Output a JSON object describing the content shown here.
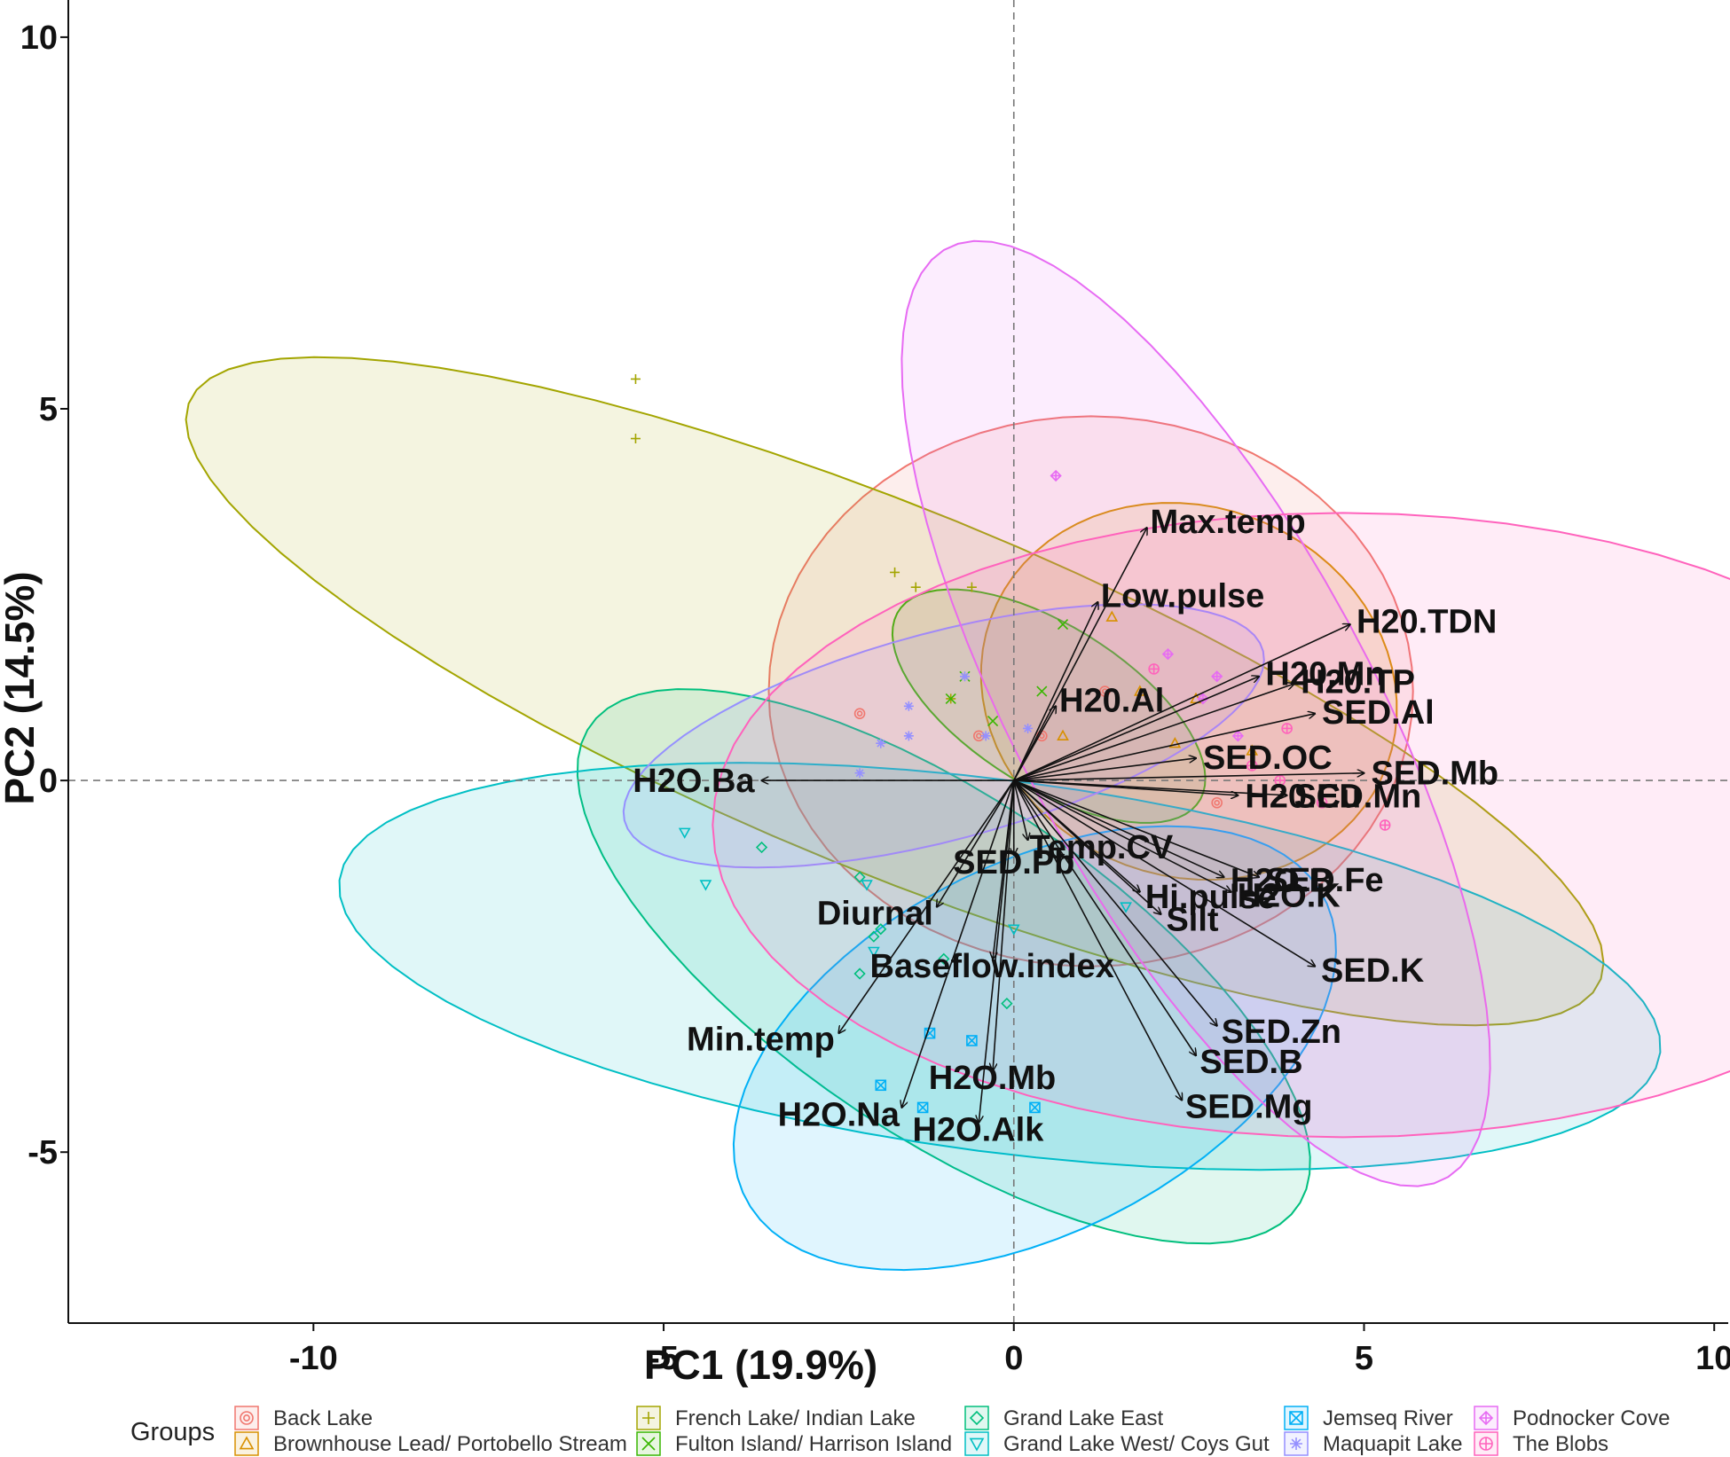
{
  "chart_data": {
    "type": "scatter",
    "subtype": "pca-biplot",
    "xlabel": "PC1 (19.9%)",
    "ylabel": "PC2 (14.5%)",
    "xlim": [
      -13.5,
      10.2
    ],
    "ylim": [
      -7.3,
      10.5
    ],
    "xticks": [
      -10,
      -5,
      0,
      5,
      10
    ],
    "yticks": [
      -5,
      0,
      5,
      10
    ],
    "xtick_labels": [
      "-10",
      "-5",
      "0",
      "5",
      "10"
    ],
    "ytick_labels": [
      "-5",
      "0",
      "5",
      "10"
    ],
    "reference_lines": {
      "x": 0,
      "y": 0,
      "style": "dashed"
    },
    "grid": false,
    "legend": {
      "title": "Groups",
      "position": "bottom"
    },
    "groups": [
      {
        "name": "Back Lake",
        "color": "#F0776F",
        "marker": "circle-dot",
        "ellipse": {
          "cx": 1.1,
          "cy": 1.2,
          "rx": 4.6,
          "ry": 3.7,
          "angle": 0
        },
        "points": [
          [
            -2.2,
            0.9
          ],
          [
            0.4,
            0.6
          ],
          [
            2.9,
            -0.3
          ],
          [
            1.3,
            1.2
          ],
          [
            -0.5,
            0.6
          ]
        ]
      },
      {
        "name": "Brownhouse Lead/ Portobello Stream",
        "color": "#D89000",
        "marker": "triangle",
        "ellipse": {
          "cx": 2.5,
          "cy": 1.2,
          "rx": 3.0,
          "ry": 2.5,
          "angle": -15
        },
        "points": [
          [
            1.8,
            1.2
          ],
          [
            2.3,
            0.5
          ],
          [
            0.7,
            0.6
          ],
          [
            1.4,
            2.2
          ],
          [
            2.6,
            1.1
          ],
          [
            3.4,
            0.4
          ]
        ]
      },
      {
        "name": "French Lake/ Indian Lake",
        "color": "#A3A500",
        "marker": "plus",
        "ellipse": {
          "cx": -1.7,
          "cy": 1.2,
          "rx": 10.8,
          "ry": 2.45,
          "angle": -21
        },
        "points": [
          [
            -5.4,
            5.4
          ],
          [
            -5.4,
            4.6
          ],
          [
            -1.4,
            2.6
          ],
          [
            -0.6,
            2.6
          ],
          [
            -0.9,
            1.1
          ],
          [
            -1.7,
            2.8
          ]
        ]
      },
      {
        "name": "Fulton Island/ Harrison Island",
        "color": "#39B600",
        "marker": "x",
        "ellipse": {
          "cx": 0.5,
          "cy": 1.0,
          "rx": 2.5,
          "ry": 1.1,
          "angle": -30
        },
        "points": [
          [
            -0.7,
            1.4
          ],
          [
            -0.3,
            0.8
          ],
          [
            0.4,
            1.2
          ],
          [
            0.7,
            2.1
          ],
          [
            -0.9,
            1.1
          ]
        ]
      },
      {
        "name": "Grand Lake East",
        "color": "#00BF7D",
        "marker": "diamond",
        "ellipse": {
          "cx": -1.0,
          "cy": -2.5,
          "rx": 6.0,
          "ry": 2.3,
          "angle": -32
        },
        "points": [
          [
            -3.6,
            -0.9
          ],
          [
            -2.2,
            -1.3
          ],
          [
            -2.0,
            -2.1
          ],
          [
            -2.2,
            -2.6
          ],
          [
            -0.1,
            -3.0
          ],
          [
            -1.0,
            -2.4
          ],
          [
            -1.9,
            -2.0
          ]
        ]
      },
      {
        "name": "Grand Lake West/ Coys Gut",
        "color": "#00BFC4",
        "marker": "triangle-down",
        "ellipse": {
          "cx": -0.2,
          "cy": -2.5,
          "rx": 9.5,
          "ry": 2.5,
          "angle": -7
        },
        "points": [
          [
            -4.7,
            -0.7
          ],
          [
            -4.4,
            -1.4
          ],
          [
            -2.1,
            -1.4
          ],
          [
            -2.0,
            -2.3
          ],
          [
            0.0,
            -2.0
          ],
          [
            1.6,
            -1.7
          ]
        ]
      },
      {
        "name": "Jemseq River",
        "color": "#00B0F6",
        "marker": "square-x",
        "ellipse": {
          "cx": 0.3,
          "cy": -3.6,
          "rx": 4.6,
          "ry": 2.5,
          "angle": 25
        },
        "points": [
          [
            -1.2,
            -3.4
          ],
          [
            -0.6,
            -3.5
          ],
          [
            -1.9,
            -4.1
          ],
          [
            -1.3,
            -4.4
          ],
          [
            0.3,
            -4.4
          ]
        ]
      },
      {
        "name": "Maquapit Lake",
        "color": "#9590FF",
        "marker": "asterisk",
        "ellipse": {
          "cx": -1.0,
          "cy": 0.6,
          "rx": 4.7,
          "ry": 1.4,
          "angle": 14
        },
        "points": [
          [
            -1.5,
            0.6
          ],
          [
            -2.2,
            0.1
          ],
          [
            -1.9,
            0.5
          ],
          [
            -1.5,
            1.0
          ],
          [
            -0.4,
            0.6
          ],
          [
            0.2,
            0.7
          ],
          [
            -0.7,
            1.4
          ]
        ]
      },
      {
        "name": "Podnocker Cove",
        "color": "#E76BF3",
        "marker": "diamond-plus",
        "ellipse": {
          "cx": 2.6,
          "cy": 0.9,
          "rx": 7.2,
          "ry": 2.5,
          "angle": -60
        },
        "points": [
          [
            0.6,
            4.1
          ],
          [
            2.2,
            1.7
          ],
          [
            2.7,
            1.1
          ],
          [
            3.2,
            0.6
          ],
          [
            2.9,
            1.4
          ]
        ]
      },
      {
        "name": "The Blobs",
        "color": "#FF62BC",
        "marker": "circle-plus",
        "ellipse": {
          "cx": 4.7,
          "cy": -0.6,
          "rx": 9.0,
          "ry": 4.2,
          "angle": 0
        },
        "points": [
          [
            2.0,
            1.5
          ],
          [
            3.9,
            0.7
          ],
          [
            3.8,
            0.0
          ],
          [
            5.3,
            -0.6
          ],
          [
            3.4,
            0.2
          ],
          [
            4.4,
            -0.3
          ]
        ]
      }
    ],
    "vectors": [
      {
        "name": "Max.temp",
        "x": 1.9,
        "y": 3.4
      },
      {
        "name": "Low.pulse",
        "x": 1.2,
        "y": 2.4
      },
      {
        "name": "H20.TDN",
        "x": 4.8,
        "y": 2.1
      },
      {
        "name": "H20.Mn",
        "x": 3.5,
        "y": 1.4
      },
      {
        "name": "H20.TP",
        "x": 4.0,
        "y": 1.3
      },
      {
        "name": "SED.Al",
        "x": 4.3,
        "y": 0.9
      },
      {
        "name": "SED.OC",
        "x": 2.6,
        "y": 0.3
      },
      {
        "name": "SED.Mb",
        "x": 5.0,
        "y": 0.1
      },
      {
        "name": "H20.Al",
        "x": 0.6,
        "y": 1.0
      },
      {
        "name": "H2O.Ba",
        "x": -3.6,
        "y": 0.0
      },
      {
        "name": "SED.Mn",
        "x": 3.9,
        "y": -0.2
      },
      {
        "name": "H20.Cu",
        "x": 3.2,
        "y": -0.2
      },
      {
        "name": "Temp.CV",
        "x": 0.2,
        "y": -0.8
      },
      {
        "name": "SED.Pb",
        "x": 0.0,
        "y": -1.0
      },
      {
        "name": "H2O.B",
        "x": 3.0,
        "y": -1.3
      },
      {
        "name": "H2O.K",
        "x": 3.1,
        "y": -1.5
      },
      {
        "name": "SED.Fe",
        "x": 3.5,
        "y": -1.3
      },
      {
        "name": "Hi.pulse",
        "x": 1.8,
        "y": -1.5
      },
      {
        "name": "Silt",
        "x": 2.1,
        "y": -1.8
      },
      {
        "name": "Diurnal",
        "x": -1.1,
        "y": -1.7
      },
      {
        "name": "SED.K",
        "x": 4.3,
        "y": -2.5
      },
      {
        "name": "Baseflow.index",
        "x": -0.3,
        "y": -2.4
      },
      {
        "name": "SED.Zn",
        "x": 2.9,
        "y": -3.3
      },
      {
        "name": "SED.B",
        "x": 2.6,
        "y": -3.7
      },
      {
        "name": "Min.temp",
        "x": -2.5,
        "y": -3.4
      },
      {
        "name": "H2O.Mb",
        "x": -0.3,
        "y": -3.9
      },
      {
        "name": "H2O.Na",
        "x": -1.6,
        "y": -4.4
      },
      {
        "name": "SED.Mg",
        "x": 2.4,
        "y": -4.3
      },
      {
        "name": "H2O.Alk",
        "x": -0.5,
        "y": -4.6
      }
    ]
  }
}
